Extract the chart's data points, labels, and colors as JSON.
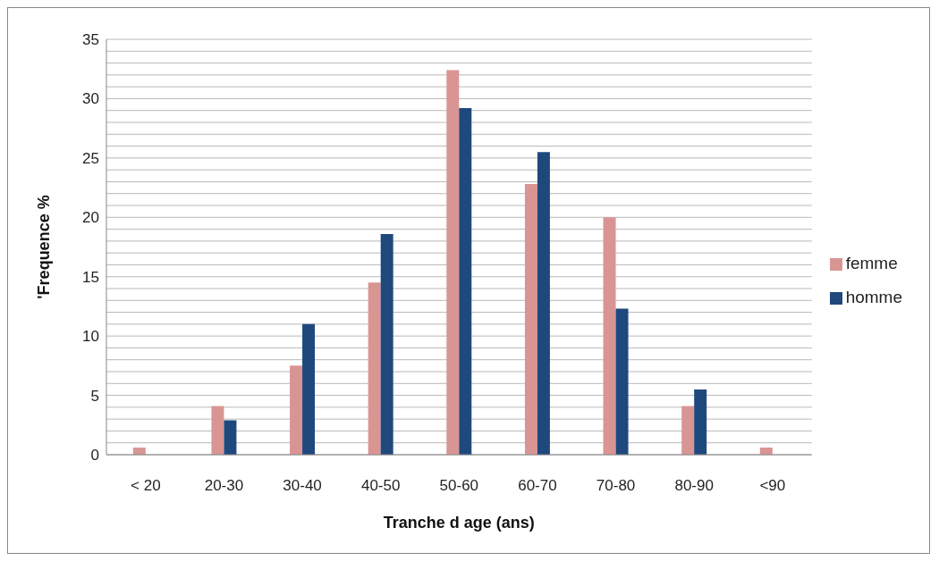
{
  "chart_data": {
    "type": "bar",
    "xlabel": "Tranche d age (ans)",
    "ylabel": "'Frequence %",
    "categories": [
      "< 20",
      "20-30",
      "30-40",
      "40-50",
      "50-60",
      "60-70",
      "70-80",
      "80-90",
      "<90"
    ],
    "series": [
      {
        "name": "femme",
        "color": "#d99594",
        "values": [
          0.6,
          4.1,
          7.5,
          14.5,
          32.4,
          22.8,
          20,
          4.1,
          0.6
        ]
      },
      {
        "name": "homme",
        "color": "#1f497d",
        "values": [
          0,
          2.9,
          11,
          18.6,
          29.2,
          25.5,
          12.3,
          5.5,
          0
        ]
      }
    ],
    "ylim": [
      0,
      35
    ],
    "yticks": [
      0,
      {
        "value": 1,
        "label": null
      },
      {
        "value": 2,
        "label": null
      },
      {
        "value": 3,
        "label": null
      },
      {
        "value": 4,
        "label": null
      },
      5,
      {
        "value": 6,
        "label": null
      },
      {
        "value": 7,
        "label": null
      },
      {
        "value": 8,
        "label": null
      },
      {
        "value": 9,
        "label": null
      },
      10,
      {
        "value": 11,
        "label": null
      },
      {
        "value": 12,
        "label": null
      },
      {
        "value": 13,
        "label": null
      },
      {
        "value": 14,
        "label": null
      },
      15,
      {
        "value": 16,
        "label": null
      },
      {
        "value": 17,
        "label": null
      },
      {
        "value": 18,
        "label": null
      },
      {
        "value": 19,
        "label": null
      },
      20,
      {
        "value": 21,
        "label": null
      },
      {
        "value": 22,
        "label": null
      },
      {
        "value": 23,
        "label": null
      },
      {
        "value": 24,
        "label": null
      },
      25,
      {
        "value": 26,
        "label": null
      },
      {
        "value": 27,
        "label": null
      },
      {
        "value": 28,
        "label": null
      },
      {
        "value": 29,
        "label": null
      },
      30,
      {
        "value": 31,
        "label": null
      },
      {
        "value": 32,
        "label": null
      },
      {
        "value": 33,
        "label": null
      },
      {
        "value": 34,
        "label": null
      },
      35
    ],
    "grid": "y",
    "legend": "right"
  }
}
